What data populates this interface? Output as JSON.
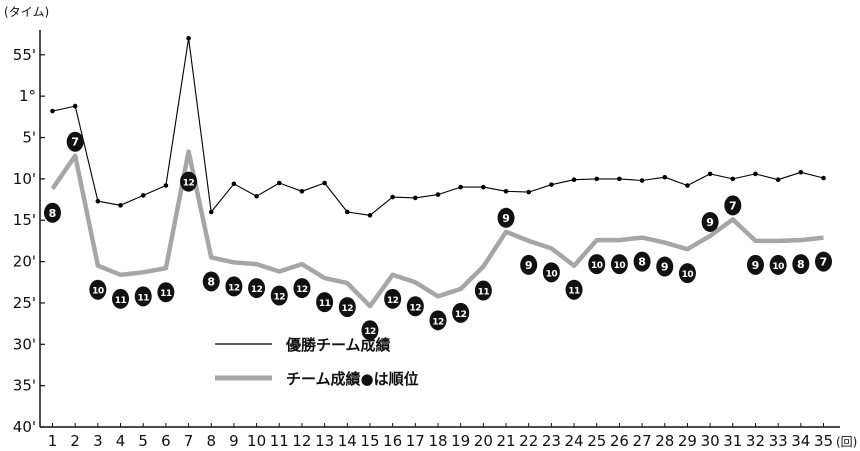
{
  "chart_data": {
    "type": "line",
    "y_axis_unit_label": "(タイム)",
    "x_axis_unit_label": "(回)",
    "y_inverted": true,
    "y_range_minutes": [
      52,
      100
    ],
    "y_ticks": [
      {
        "label": "55'",
        "minutes": 55
      },
      {
        "label": "1°",
        "minutes": 60
      },
      {
        "label": "5'",
        "minutes": 65
      },
      {
        "label": "10'",
        "minutes": 70
      },
      {
        "label": "15'",
        "minutes": 75
      },
      {
        "label": "20'",
        "minutes": 80
      },
      {
        "label": "25'",
        "minutes": 85
      },
      {
        "label": "30'",
        "minutes": 90
      },
      {
        "label": "35'",
        "minutes": 95
      },
      {
        "label": "40'",
        "minutes": 100
      }
    ],
    "categories": [
      "1",
      "2",
      "3",
      "4",
      "5",
      "6",
      "7",
      "8",
      "9",
      "10",
      "11",
      "12",
      "13",
      "14",
      "15",
      "16",
      "17",
      "18",
      "19",
      "20",
      "21",
      "22",
      "23",
      "24",
      "25",
      "26",
      "27",
      "28",
      "29",
      "30",
      "31",
      "32",
      "33",
      "34",
      "35"
    ],
    "series": [
      {
        "name": "優勝チーム成績",
        "color": "#000000",
        "values": [
          61.8,
          61.2,
          72.7,
          73.2,
          72.0,
          70.8,
          53.0,
          74.0,
          70.6,
          72.1,
          70.5,
          71.5,
          70.5,
          74.0,
          74.4,
          72.2,
          72.3,
          71.9,
          71.0,
          71.0,
          71.5,
          71.6,
          70.7,
          70.1,
          70.0,
          70.0,
          70.2,
          69.8,
          70.8,
          69.4,
          70.0,
          69.4,
          70.1,
          69.2,
          69.9
        ]
      },
      {
        "name": "チーム成績●は順位",
        "color": "#a6a6a6",
        "values": [
          71.2,
          67.2,
          80.5,
          81.6,
          81.3,
          80.8,
          66.7,
          79.5,
          80.1,
          80.3,
          81.2,
          80.3,
          82.0,
          82.6,
          85.4,
          81.6,
          82.5,
          84.2,
          83.3,
          80.6,
          76.4,
          77.5,
          78.4,
          80.5,
          77.4,
          77.4,
          77.1,
          77.7,
          78.5,
          76.9,
          74.9,
          77.5,
          77.5,
          77.4,
          77.1
        ]
      }
    ],
    "rankings": [
      "8",
      "7",
      "10",
      "11",
      "11",
      "11",
      "12",
      "8",
      "12",
      "12",
      "12",
      "12",
      "11",
      "12",
      "12",
      "12",
      "12",
      "12",
      "12",
      "11",
      "9",
      "9",
      "10",
      "11",
      "10",
      "10",
      "8",
      "9",
      "10",
      "9",
      "7",
      "9",
      "10",
      "8",
      "7"
    ],
    "rank_placement": [
      "below",
      "above",
      "below",
      "below",
      "below",
      "below",
      "above",
      "below",
      "below",
      "below",
      "below",
      "below",
      "below",
      "below",
      "below",
      "below",
      "below",
      "below",
      "below",
      "below",
      "above",
      "below",
      "below",
      "below",
      "below",
      "below",
      "below",
      "below",
      "below",
      "above",
      "above",
      "below",
      "below",
      "below",
      "below"
    ]
  }
}
